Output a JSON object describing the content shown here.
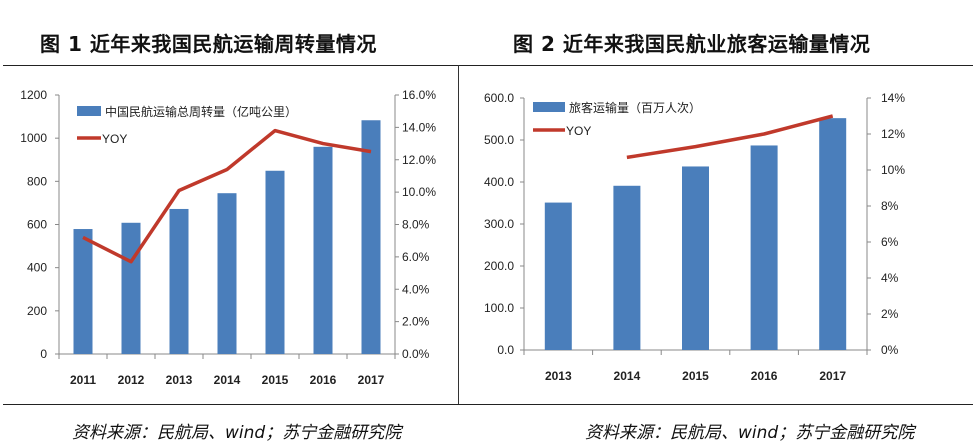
{
  "chart_data": [
    {
      "type": "bar",
      "title": "图 1 近年来我国民航运输周转量情况",
      "categories": [
        "2011",
        "2012",
        "2013",
        "2014",
        "2015",
        "2016",
        "2017"
      ],
      "series": [
        {
          "name": "中国民航运输总周转量（亿吨公里）",
          "type": "bar",
          "axis": "left",
          "values": [
            579,
            608,
            672,
            745,
            849,
            960,
            1083
          ],
          "color": "#4a7ebb"
        },
        {
          "name": "YOY",
          "type": "line",
          "axis": "right",
          "values": [
            7.2,
            5.7,
            10.1,
            11.4,
            13.8,
            13.0,
            12.5
          ],
          "color": "#c0392b"
        }
      ],
      "ylim": [
        0,
        1200
      ],
      "yticks": [
        "0",
        "200",
        "400",
        "600",
        "800",
        "1000",
        "1200"
      ],
      "y2lim": [
        0,
        16
      ],
      "y2ticks": [
        "0.0%",
        "2.0%",
        "4.0%",
        "6.0%",
        "8.0%",
        "10.0%",
        "12.0%",
        "14.0%",
        "16.0%"
      ],
      "grid": false,
      "legend": "top-left",
      "source": "资料来源：民航局、wind；苏宁金融研究院"
    },
    {
      "type": "bar",
      "title": "图 2 近年来我国民航业旅客运输量情况",
      "categories": [
        "2013",
        "2014",
        "2015",
        "2016",
        "2017"
      ],
      "series": [
        {
          "name": "旅客运输量（百万人次）",
          "type": "bar",
          "axis": "left",
          "values": [
            351,
            391,
            437,
            487,
            552
          ],
          "color": "#4a7ebb"
        },
        {
          "name": "YOY",
          "type": "line",
          "axis": "right",
          "values": [
            null,
            10.7,
            11.3,
            12.0,
            13.0
          ],
          "color": "#c0392b"
        }
      ],
      "ylim": [
        0,
        600
      ],
      "yticks": [
        "0.0",
        "100.0",
        "200.0",
        "300.0",
        "400.0",
        "500.0",
        "600.0"
      ],
      "y2lim": [
        0,
        14
      ],
      "y2ticks": [
        "0%",
        "2%",
        "4%",
        "6%",
        "8%",
        "10%",
        "12%",
        "14%"
      ],
      "grid": false,
      "legend": "top-left",
      "source": "资料来源：民航局、wind；苏宁金融研究院"
    }
  ]
}
